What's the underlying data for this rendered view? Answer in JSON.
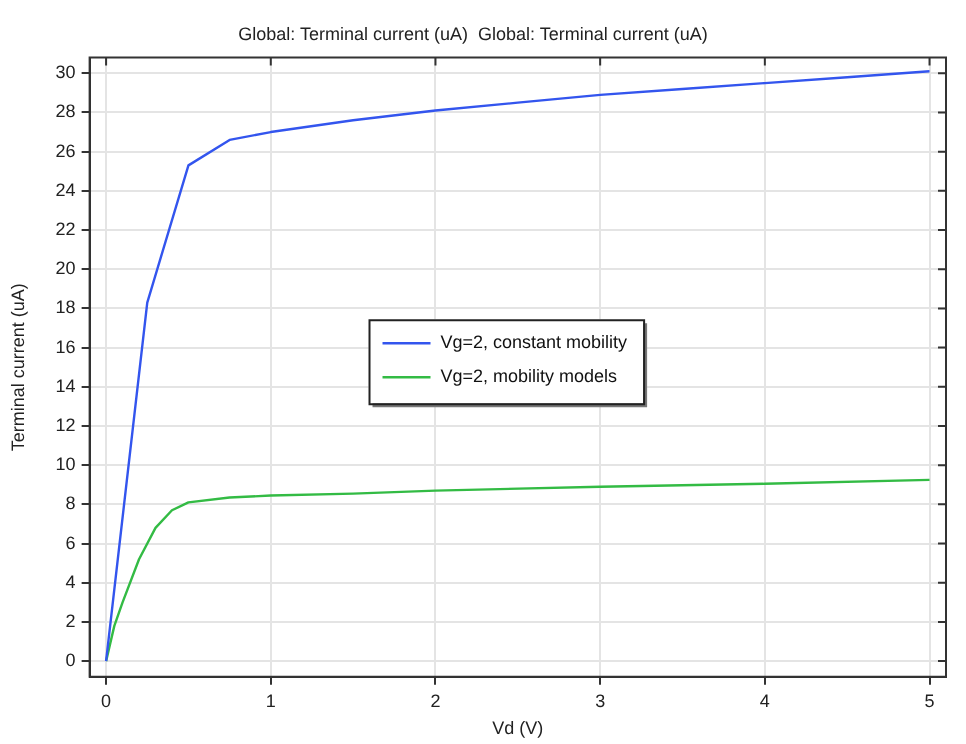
{
  "chart_data": {
    "type": "line",
    "title": "Global: Terminal current (uA)  Global: Terminal current (uA)",
    "xlabel": "Vd (V)",
    "ylabel": "Terminal current (uA)",
    "series": [
      {
        "name": "Vg=2, constant mobility",
        "color": "#3355ee",
        "x": [
          0,
          0.25,
          0.5,
          0.75,
          1,
          1.5,
          2,
          2.5,
          3,
          3.5,
          4,
          4.5,
          5
        ],
        "values": [
          0,
          18.3,
          25.3,
          26.6,
          27.0,
          27.6,
          28.1,
          28.5,
          28.9,
          29.2,
          29.5,
          29.8,
          30.1
        ]
      },
      {
        "name": "Vg=2, mobility models",
        "color": "#33bb44",
        "x": [
          0,
          0.05,
          0.1,
          0.2,
          0.3,
          0.4,
          0.5,
          0.75,
          1,
          1.5,
          2,
          3,
          4,
          5
        ],
        "values": [
          0,
          1.8,
          3.0,
          5.2,
          6.8,
          7.7,
          8.1,
          8.35,
          8.45,
          8.55,
          8.7,
          8.9,
          9.05,
          9.25
        ]
      }
    ],
    "xlim": [
      -0.1,
      5.1
    ],
    "xticks": [
      0,
      1,
      2,
      3,
      4,
      5
    ],
    "ylim": [
      -0.8,
      30.8
    ],
    "yticks": [
      0,
      2,
      4,
      6,
      8,
      10,
      12,
      14,
      16,
      18,
      20,
      22,
      24,
      26,
      28,
      30
    ],
    "grid": true,
    "legend": "center",
    "marker": "none",
    "line_style": "solid"
  }
}
